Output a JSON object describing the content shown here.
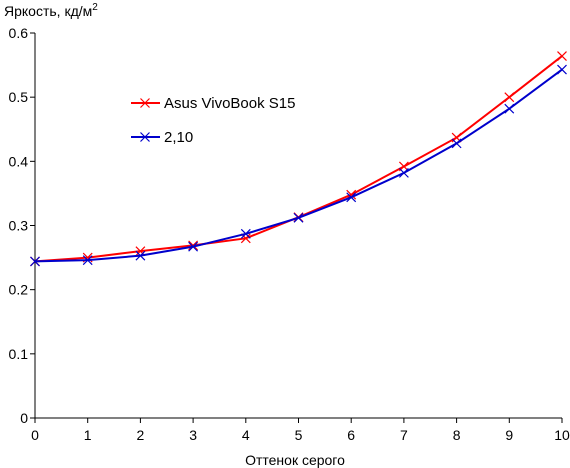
{
  "chart_data": {
    "type": "line",
    "title": "",
    "ylabel": "Яркость, кд/м",
    "ylabel_sup": "2",
    "xlabel": "Оттенок серого",
    "x": [
      0,
      1,
      2,
      3,
      4,
      5,
      6,
      7,
      8,
      9,
      10
    ],
    "xlim": [
      0,
      10
    ],
    "ylim": [
      0,
      0.6
    ],
    "x_ticks": [
      "0",
      "1",
      "2",
      "3",
      "4",
      "5",
      "6",
      "7",
      "8",
      "9",
      "10"
    ],
    "y_ticks": [
      "0",
      "0.1",
      "0.2",
      "0.3",
      "0.4",
      "0.5",
      "0.6"
    ],
    "grid": false,
    "legend_position": "upper-left",
    "series": [
      {
        "name": "Asus VivoBook S15",
        "color": "#ff0000",
        "marker": "x",
        "values": [
          0.244,
          0.25,
          0.26,
          0.269,
          0.28,
          0.313,
          0.348,
          0.392,
          0.437,
          0.5,
          0.564
        ]
      },
      {
        "name": "2,10",
        "color": "#0000cc",
        "marker": "x",
        "values": [
          0.244,
          0.246,
          0.253,
          0.267,
          0.287,
          0.312,
          0.344,
          0.382,
          0.428,
          0.482,
          0.543
        ]
      }
    ]
  }
}
